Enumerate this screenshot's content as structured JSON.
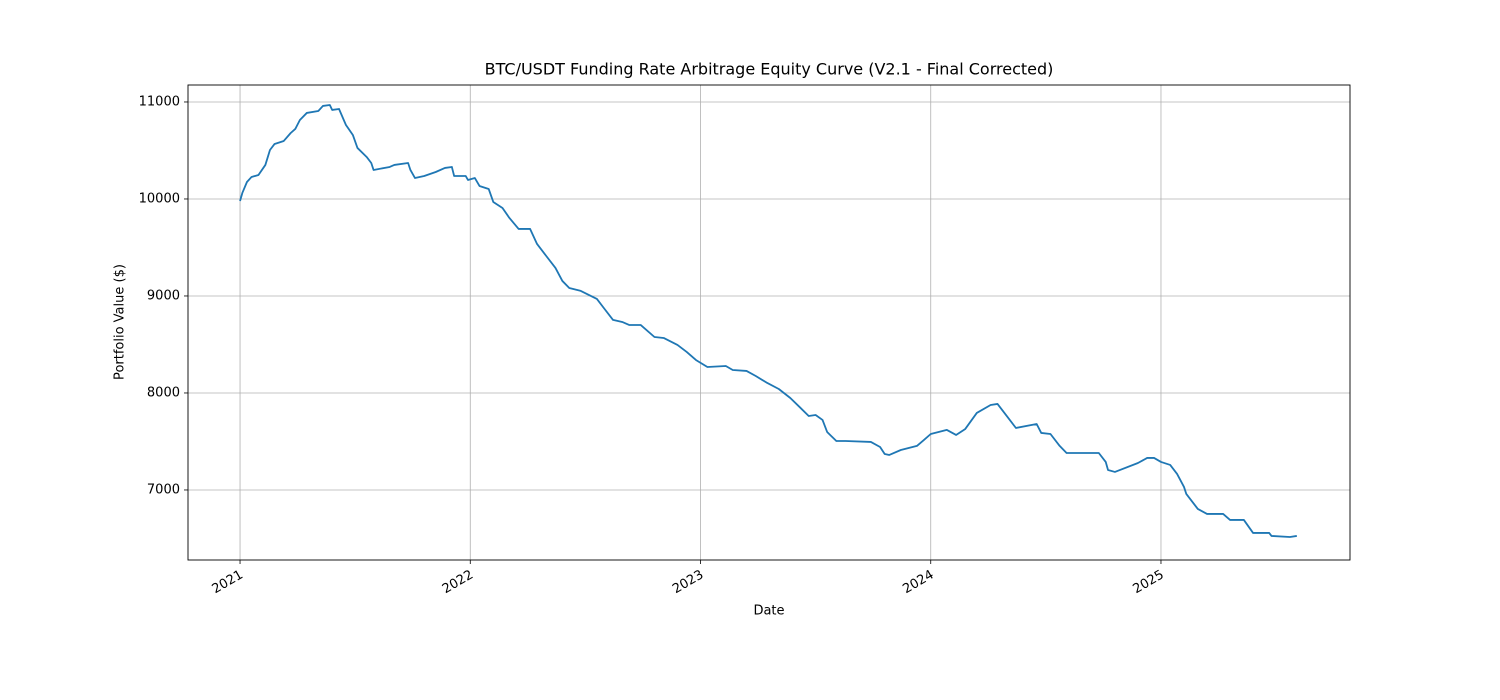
{
  "chart_data": {
    "type": "line",
    "title": "BTC/USDT Funding Rate Arbitrage Equity Curve (V2.1 - Final Corrected)",
    "x_label": "Date",
    "y_label": "Portfolio Value ($)",
    "color": "#1f77b4",
    "grid": true,
    "xlim": [
      2020.774,
      2025.821
    ],
    "xticks": [
      2021,
      2022,
      2023,
      2024,
      2025
    ],
    "ylim": [
      6278,
      11175
    ],
    "yticks": [
      7000,
      8000,
      9000,
      10000,
      11000
    ],
    "x": [
      2021.0,
      2021.01,
      2021.03,
      2021.05,
      2021.08,
      2021.11,
      2021.13,
      2021.15,
      2021.19,
      2021.22,
      2021.24,
      2021.26,
      2021.29,
      2021.34,
      2021.36,
      2021.39,
      2021.4,
      2021.43,
      2021.46,
      2021.49,
      2021.51,
      2021.55,
      2021.57,
      2021.58,
      2021.65,
      2021.67,
      2021.73,
      2021.74,
      2021.76,
      2021.8,
      2021.85,
      2021.89,
      2021.92,
      2021.93,
      2021.98,
      2021.99,
      2022.02,
      2022.04,
      2022.08,
      2022.1,
      2022.14,
      2022.17,
      2022.21,
      2022.26,
      2022.29,
      2022.33,
      2022.37,
      2022.4,
      2022.43,
      2022.48,
      2022.55,
      2022.58,
      2022.62,
      2022.66,
      2022.69,
      2022.74,
      2022.8,
      2022.84,
      2022.9,
      2022.94,
      2022.98,
      2023.03,
      2023.11,
      2023.14,
      2023.2,
      2023.24,
      2023.29,
      2023.34,
      2023.39,
      2023.43,
      2023.47,
      2023.5,
      2023.53,
      2023.55,
      2023.59,
      2023.63,
      2023.74,
      2023.78,
      2023.8,
      2023.82,
      2023.87,
      2023.94,
      2023.97,
      2024.0,
      2024.07,
      2024.11,
      2024.15,
      2024.2,
      2024.26,
      2024.29,
      2024.33,
      2024.37,
      2024.46,
      2024.48,
      2024.52,
      2024.56,
      2024.59,
      2024.73,
      2024.76,
      2024.77,
      2024.8,
      2024.9,
      2024.94,
      2024.97,
      2025.0,
      2025.04,
      2025.07,
      2025.1,
      2025.11,
      2025.16,
      2025.2,
      2025.27,
      2025.3,
      2025.36,
      2025.4,
      2025.47,
      2025.48,
      2025.56,
      2025.59
    ],
    "values": [
      9979,
      10062,
      10175,
      10227,
      10247,
      10351,
      10505,
      10567,
      10598,
      10680,
      10722,
      10814,
      10887,
      10907,
      10959,
      10969,
      10918,
      10928,
      10763,
      10660,
      10526,
      10433,
      10371,
      10299,
      10330,
      10351,
      10371,
      10299,
      10216,
      10237,
      10278,
      10320,
      10330,
      10237,
      10237,
      10196,
      10216,
      10134,
      10103,
      9969,
      9907,
      9804,
      9691,
      9691,
      9536,
      9412,
      9289,
      9155,
      9082,
      9052,
      8969,
      8876,
      8753,
      8732,
      8701,
      8701,
      8577,
      8567,
      8495,
      8423,
      8340,
      8268,
      8278,
      8237,
      8227,
      8175,
      8103,
      8041,
      7948,
      7856,
      7763,
      7773,
      7722,
      7598,
      7505,
      7505,
      7495,
      7443,
      7371,
      7361,
      7412,
      7454,
      7515,
      7577,
      7619,
      7567,
      7629,
      7794,
      7876,
      7887,
      7763,
      7639,
      7680,
      7588,
      7577,
      7454,
      7381,
      7381,
      7289,
      7206,
      7186,
      7278,
      7330,
      7330,
      7289,
      7258,
      7165,
      7031,
      6959,
      6804,
      6753,
      6753,
      6691,
      6691,
      6557,
      6557,
      6526,
      6515,
      6526
    ]
  }
}
